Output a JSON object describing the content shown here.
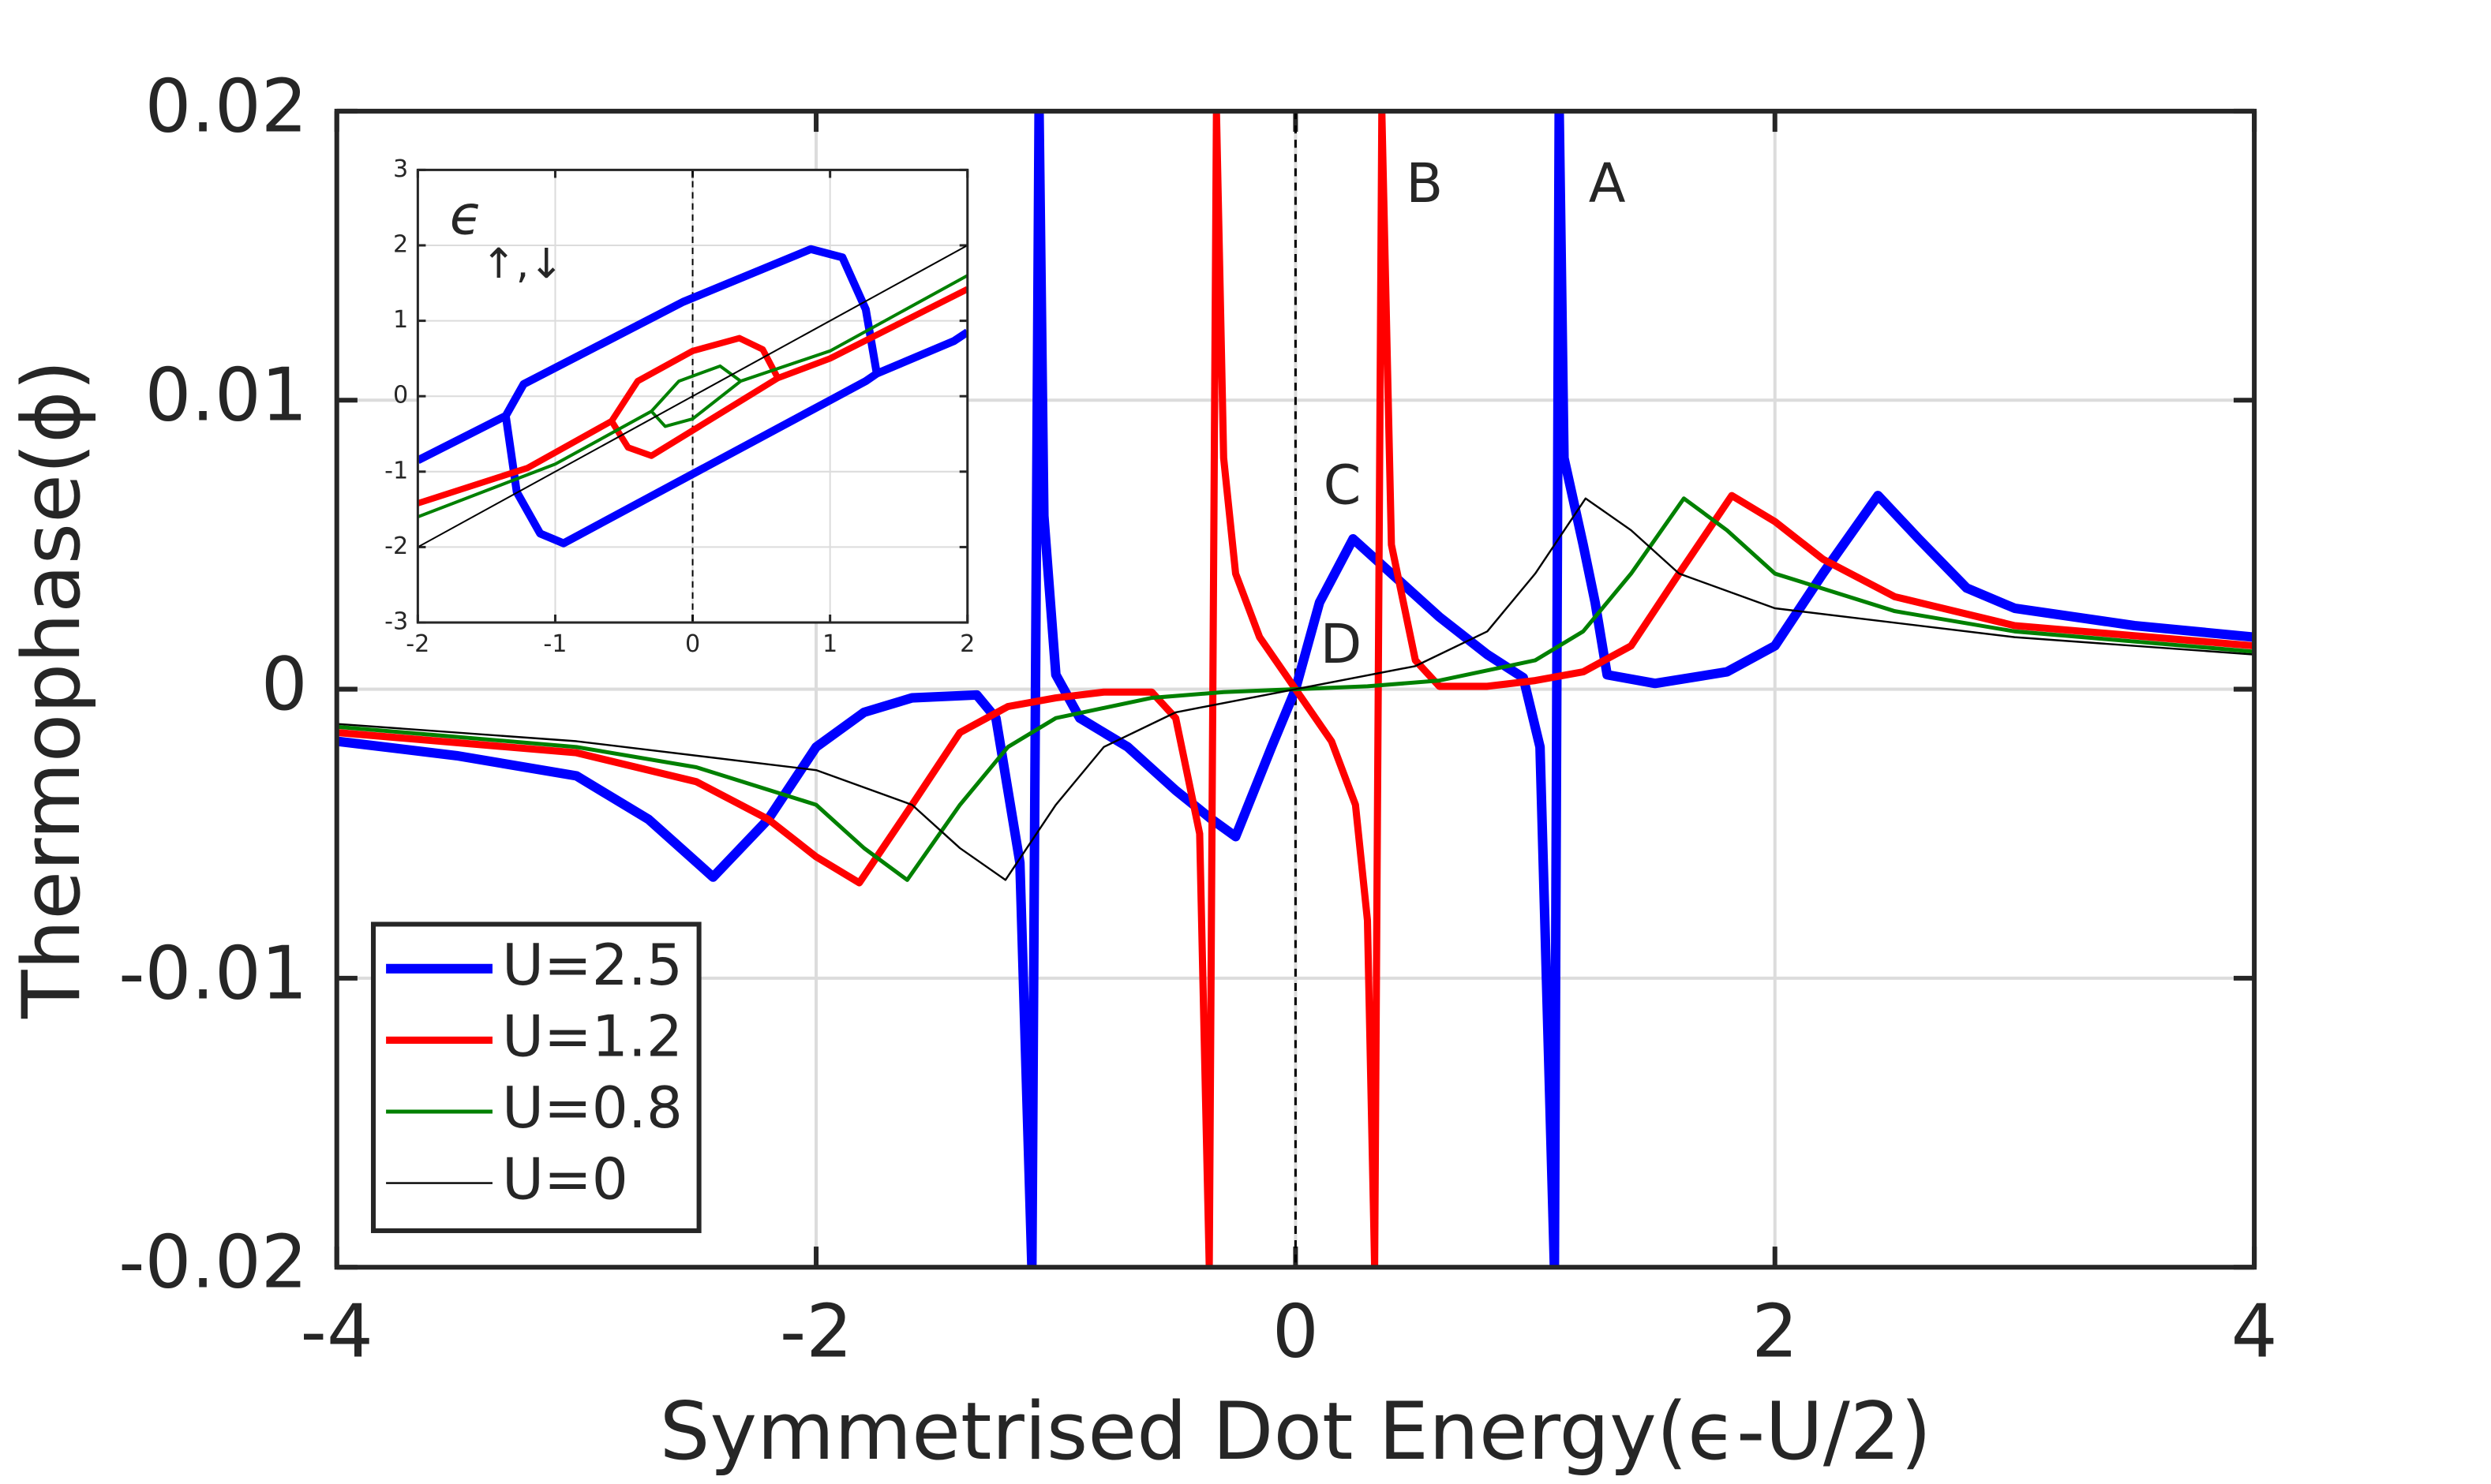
{
  "chart_data": [
    {
      "type": "line",
      "xlabel": "Symmetrised Dot Energy(ϵ-U/2)",
      "ylabel": "Thermophase(ϕ)",
      "xlim": [
        -4,
        4
      ],
      "ylim": [
        -0.02,
        0.02
      ],
      "xticks": [
        -4,
        -2,
        0,
        2,
        4
      ],
      "yticks": [
        -0.02,
        -0.01,
        0,
        0.01,
        0.02
      ],
      "grid": true,
      "legend": "lower left",
      "vline": 0,
      "annotations": [
        "A",
        "B",
        "C",
        "D"
      ],
      "series": [
        {
          "name": "U=2.5",
          "color": "#0000ff",
          "linewidth": 6,
          "x": [
            -4,
            -3.5,
            -3,
            -2.7,
            -2.43,
            -2.2,
            -2,
            -1.8,
            -1.6,
            -1.33,
            -1.25,
            -1.15,
            -1.1,
            -1.07,
            -1.05,
            -1,
            -0.9,
            -0.7,
            -0.5,
            -0.35,
            -0.25,
            -0.1,
            0,
            0.1,
            0.24,
            0.4,
            0.6,
            0.8,
            0.95,
            1.02,
            1.08,
            1.1,
            1.12,
            1.2,
            1.25,
            1.3,
            1.5,
            1.8,
            2,
            2.2,
            2.43,
            2.6,
            2.8,
            3,
            3.5,
            4
          ],
          "values": [
            -0.0018,
            -0.0023,
            -0.003,
            -0.0045,
            -0.0065,
            -0.0045,
            -0.002,
            -0.0008,
            -0.0003,
            -0.0002,
            -0.001,
            -0.006,
            -0.02,
            0.02,
            0.006,
            0.0005,
            -0.001,
            -0.002,
            -0.0035,
            -0.0045,
            -0.0051,
            -0.002,
            0,
            0.003,
            0.0052,
            0.004,
            0.0025,
            0.0012,
            0.0004,
            -0.002,
            -0.02,
            0.02,
            0.008,
            0.005,
            0.003,
            0.0005,
            0.0002,
            0.0006,
            0.0015,
            0.004,
            0.0067,
            0.0052,
            0.0035,
            0.0028,
            0.0022,
            0.0018
          ]
        },
        {
          "name": "U=1.2",
          "color": "#ff0000",
          "linewidth": 4.5,
          "x": [
            -4,
            -3,
            -2.5,
            -2.2,
            -2,
            -1.82,
            -1.6,
            -1.4,
            -1.2,
            -1,
            -0.8,
            -0.6,
            -0.5,
            -0.4,
            -0.36,
            -0.33,
            -0.3,
            -0.25,
            -0.15,
            -0.05,
            0,
            0.05,
            0.15,
            0.25,
            0.3,
            0.33,
            0.36,
            0.4,
            0.5,
            0.6,
            0.8,
            1,
            1.2,
            1.4,
            1.6,
            1.82,
            2,
            2.2,
            2.5,
            3,
            4
          ],
          "values": [
            -0.0015,
            -0.0022,
            -0.0032,
            -0.0045,
            -0.0058,
            -0.0067,
            -0.004,
            -0.0015,
            -0.0006,
            -0.0003,
            -0.0001,
            -0.0001,
            -0.001,
            -0.005,
            -0.02,
            0.02,
            0.008,
            0.004,
            0.0018,
            0.0006,
            0,
            -0.0006,
            -0.0018,
            -0.004,
            -0.008,
            -0.02,
            0.02,
            0.005,
            0.001,
            0.0001,
            0.0001,
            0.0003,
            0.0006,
            0.0015,
            0.004,
            0.0067,
            0.0058,
            0.0045,
            0.0032,
            0.0022,
            0.0015
          ]
        },
        {
          "name": "U=0.8",
          "color": "#008000",
          "linewidth": 2.5,
          "x": [
            -4,
            -3,
            -2.5,
            -2,
            -1.8,
            -1.62,
            -1.4,
            -1.2,
            -1,
            -0.6,
            -0.3,
            0,
            0.3,
            0.6,
            1,
            1.2,
            1.4,
            1.62,
            1.8,
            2,
            2.5,
            3,
            4
          ],
          "values": [
            -0.0013,
            -0.002,
            -0.0027,
            -0.004,
            -0.0055,
            -0.0066,
            -0.004,
            -0.002,
            -0.001,
            -0.0003,
            -0.0001,
            0,
            0.0001,
            0.0003,
            0.001,
            0.002,
            0.004,
            0.0066,
            0.0055,
            0.004,
            0.0027,
            0.002,
            0.0013
          ]
        },
        {
          "name": "U=0",
          "color": "#000000",
          "linewidth": 1.2,
          "x": [
            -4,
            -3,
            -2,
            -1.6,
            -1.4,
            -1.21,
            -1,
            -0.8,
            -0.5,
            0,
            0.5,
            0.8,
            1,
            1.21,
            1.4,
            1.6,
            2,
            3,
            4
          ],
          "values": [
            -0.0012,
            -0.0018,
            -0.0028,
            -0.004,
            -0.0055,
            -0.0066,
            -0.004,
            -0.002,
            -0.0008,
            0,
            0.0008,
            0.002,
            0.004,
            0.0066,
            0.0055,
            0.004,
            0.0028,
            0.0018,
            0.0012
          ]
        }
      ]
    },
    {
      "type": "line",
      "ylabel": {
        "text": "ϵ",
        "subscript": "↑,↓"
      },
      "xlim": [
        -2,
        2
      ],
      "ylim": [
        -3,
        3
      ],
      "xticks": [
        -2,
        -1,
        0,
        1,
        2
      ],
      "yticks": [
        -3,
        -2,
        -1,
        0,
        1,
        2,
        3
      ],
      "grid": true,
      "vline": 0,
      "series": [
        {
          "color": "#0000ff",
          "linewidth": 5,
          "x": [
            -2,
            -1.36,
            -1.23,
            -0.07,
            0.86,
            1.09,
            1.26,
            1.34,
            1.9,
            2,
            null,
            -1.36,
            -1.28,
            -1.11,
            -0.94,
            1.26,
            1.34
          ],
          "values": [
            -0.85,
            -0.26,
            0.16,
            1.25,
            1.95,
            1.84,
            1.15,
            0.3,
            0.73,
            0.85,
            null,
            -0.26,
            -1.27,
            -1.82,
            -1.95,
            0.2,
            0.3
          ]
        },
        {
          "color": "#ff0000",
          "linewidth": 4,
          "x": [
            -2,
            -1.2,
            -0.59,
            -0.4,
            0,
            0.34,
            0.51,
            0.62,
            1,
            2,
            null,
            -0.59,
            -0.47,
            -0.3,
            0.62
          ],
          "values": [
            -1.42,
            -0.95,
            -0.33,
            0.2,
            0.6,
            0.77,
            0.62,
            0.24,
            0.5,
            1.42,
            null,
            -0.33,
            -0.68,
            -0.79,
            0.24
          ]
        },
        {
          "color": "#008000",
          "linewidth": 2,
          "x": [
            -2,
            -1,
            -0.3,
            -0.1,
            0.2,
            0.35,
            1,
            2,
            null,
            -0.3,
            -0.2,
            0,
            0.35
          ],
          "values": [
            -1.6,
            -0.9,
            -0.2,
            0.2,
            0.4,
            0.2,
            0.6,
            1.6,
            null,
            -0.2,
            -0.4,
            -0.3,
            0.2
          ]
        },
        {
          "color": "#000000",
          "linewidth": 1,
          "x": [
            -2,
            2
          ],
          "values": [
            -2,
            2
          ]
        }
      ]
    }
  ]
}
